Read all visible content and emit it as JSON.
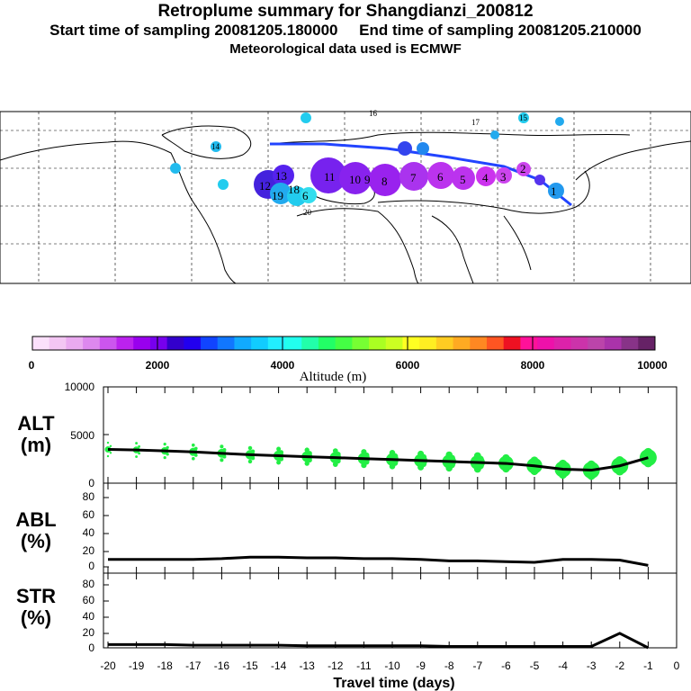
{
  "header": {
    "title": "Retroplume summary for Shangdianzi_200812",
    "sampling_line": "Start time of sampling 20081205.180000     End time of sampling 20081205.210000",
    "met_line": "Meteorological data used is ECMWF"
  },
  "colorbar": {
    "ticks": [
      "0",
      "2000",
      "4000",
      "6000",
      "8000",
      "10000"
    ],
    "label": "Altitude (m)"
  },
  "chart_data": [
    {
      "type": "line",
      "name": "ALT",
      "ylabel_line1": "ALT",
      "ylabel_line2": "(m)",
      "ylim": [
        0,
        10000
      ],
      "yticks": [
        "10000",
        "5000",
        "0"
      ],
      "x": [
        -20,
        -19,
        -18,
        -17,
        -16,
        -15,
        -14,
        -13,
        -12,
        -11,
        -10,
        -9,
        -8,
        -7,
        -6,
        -5,
        -4,
        -3,
        -2,
        -1
      ],
      "values": [
        3500,
        3450,
        3350,
        3250,
        3100,
        2950,
        2850,
        2750,
        2650,
        2550,
        2450,
        2350,
        2250,
        2150,
        2050,
        1800,
        1450,
        1350,
        1800,
        2650
      ],
      "scatter_note": "green dots show plume altitude spread"
    },
    {
      "type": "line",
      "name": "ABL",
      "ylabel_line1": "ABL",
      "ylabel_line2": "(%)",
      "ylim": [
        0,
        100
      ],
      "yticks": [
        "80",
        "60",
        "40",
        "20",
        "0"
      ],
      "x": [
        -20,
        -19,
        -18,
        -17,
        -16,
        -15,
        -14,
        -13,
        -12,
        -11,
        -10,
        -9,
        -8,
        -7,
        -6,
        -5,
        -4,
        -3,
        -2,
        -1
      ],
      "values": [
        10,
        10,
        10,
        10,
        11,
        13,
        13,
        12,
        12,
        11,
        11,
        10,
        8,
        8,
        7,
        6,
        10,
        10,
        9,
        2
      ]
    },
    {
      "type": "line",
      "name": "STR",
      "ylabel_line1": "STR",
      "ylabel_line2": "(%)",
      "ylim": [
        0,
        100
      ],
      "yticks": [
        "80",
        "60",
        "40",
        "20",
        "0"
      ],
      "x": [
        -20,
        -19,
        -18,
        -17,
        -16,
        -15,
        -14,
        -13,
        -12,
        -11,
        -10,
        -9,
        -8,
        -7,
        -6,
        -5,
        -4,
        -3,
        -2,
        -1
      ],
      "values": [
        5,
        5,
        5,
        4,
        4,
        4,
        4,
        3,
        3,
        3,
        3,
        3,
        2,
        2,
        2,
        2,
        2,
        2,
        22,
        0
      ]
    }
  ],
  "xaxis": {
    "ticks": [
      "-20",
      "-19",
      "-18",
      "-17",
      "-16",
      "-15",
      "-14",
      "-13",
      "-12",
      "-11",
      "-10",
      "-9",
      "-8",
      "-7",
      "-6",
      "-5",
      "-4",
      "-3",
      "-2",
      "-1",
      "0"
    ],
    "label": "Travel time (days)"
  },
  "map": {
    "plume_labels": [
      "12",
      "13",
      "11",
      "19",
      "18",
      "7",
      "6",
      "10",
      "9",
      "8",
      "7",
      "6",
      "5",
      "4",
      "3",
      "2",
      "1",
      "20",
      "17",
      "16",
      "15",
      "14"
    ]
  },
  "colors": {
    "line": "#000000",
    "dots": "#22ee44",
    "plume_path": "#2244ff"
  }
}
